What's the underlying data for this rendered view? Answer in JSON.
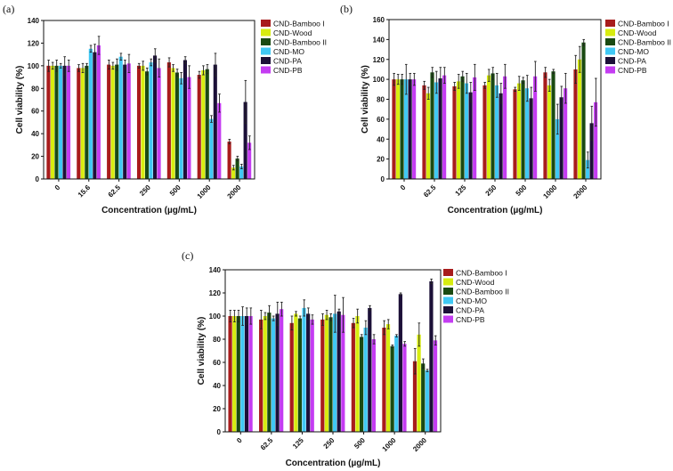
{
  "colors": [
    "#a81c1c",
    "#d8ec10",
    "#1a4a12",
    "#40c8f4",
    "#1c1038",
    "#c43cf2"
  ],
  "chart_data": [
    {
      "panel": "(a)",
      "type": "bar",
      "xlabel": "Concentration (µg/mL)",
      "ylabel": "Cell viability (%)",
      "ylim": [
        0,
        140
      ],
      "yticks": [
        0,
        20,
        40,
        60,
        80,
        100,
        120,
        140
      ],
      "categories": [
        "0",
        "15.6",
        "62.5",
        "250",
        "500",
        "1000",
        "2000"
      ],
      "legend_position": "right",
      "series": [
        {
          "name": "CND-Bamboo I",
          "values": [
            100,
            98,
            101,
            100,
            103,
            92,
            33
          ],
          "errors": [
            5,
            3,
            4,
            2,
            4,
            3,
            2
          ]
        },
        {
          "name": "CND-Wood",
          "values": [
            100,
            98,
            100,
            100,
            98,
            96,
            10
          ],
          "errors": [
            3,
            4,
            3,
            4,
            3,
            4,
            2
          ]
        },
        {
          "name": "CND-Bamboo II",
          "values": [
            100,
            100,
            101,
            95,
            94,
            97,
            18
          ],
          "errors": [
            5,
            2,
            5,
            3,
            3,
            4,
            2
          ]
        },
        {
          "name": "CND-MO",
          "values": [
            100,
            115,
            108,
            103,
            89,
            53,
            11
          ],
          "errors": [
            2,
            3,
            3,
            3,
            5,
            3,
            2
          ]
        },
        {
          "name": "CND-PA",
          "values": [
            100,
            112,
            101,
            109,
            105,
            101,
            68
          ],
          "errors": [
            8,
            7,
            4,
            6,
            3,
            10,
            19
          ]
        },
        {
          "name": "CND-PB",
          "values": [
            100,
            118,
            102,
            98,
            90,
            67,
            32
          ],
          "errors": [
            5,
            8,
            8,
            8,
            10,
            8,
            6
          ]
        }
      ]
    },
    {
      "panel": "(b)",
      "type": "bar",
      "xlabel": "Concentration (µg/mL)",
      "ylabel": "Cell viability (%)",
      "ylim": [
        0,
        160
      ],
      "yticks": [
        0,
        20,
        40,
        60,
        80,
        100,
        120,
        140,
        160
      ],
      "categories": [
        "0",
        "62.5",
        "125",
        "250",
        "500",
        "1000",
        "2000"
      ],
      "legend_position": "right",
      "series": [
        {
          "name": "CND-Bamboo I",
          "values": [
            100,
            94,
            93,
            94,
            90,
            107,
            110
          ],
          "errors": [
            6,
            4,
            4,
            3,
            2,
            5,
            14
          ]
        },
        {
          "name": "CND-Wood",
          "values": [
            100,
            86,
            98,
            104,
            96,
            94,
            120
          ],
          "errors": [
            5,
            6,
            7,
            6,
            7,
            6,
            13
          ]
        },
        {
          "name": "CND-Bamboo II",
          "values": [
            100,
            107,
            103,
            106,
            99,
            108,
            137
          ],
          "errors": [
            5,
            5,
            5,
            6,
            3,
            2,
            3
          ]
        },
        {
          "name": "CND-MO",
          "values": [
            100,
            97,
            96,
            94,
            91,
            60,
            19
          ],
          "errors": [
            15,
            11,
            10,
            12,
            13,
            15,
            8
          ]
        },
        {
          "name": "CND-PA",
          "values": [
            100,
            101,
            87,
            86,
            81,
            82,
            56
          ],
          "errors": [
            6,
            11,
            10,
            10,
            11,
            11,
            17
          ]
        },
        {
          "name": "CND-PB",
          "values": [
            100,
            104,
            102,
            103,
            103,
            91,
            77
          ],
          "errors": [
            6,
            8,
            13,
            12,
            15,
            15,
            24
          ]
        }
      ]
    },
    {
      "panel": "(c)",
      "type": "bar",
      "xlabel": "Concentration (µg/mL)",
      "ylabel": "Cell viability (%)",
      "ylim": [
        0,
        140
      ],
      "yticks": [
        0,
        20,
        40,
        60,
        80,
        100,
        120,
        140
      ],
      "categories": [
        "0",
        "62.5",
        "125",
        "250",
        "500",
        "1000",
        "2000"
      ],
      "legend_position": "right",
      "series": [
        {
          "name": "CND-Bamboo I",
          "values": [
            100,
            97,
            94,
            97,
            94,
            90,
            61
          ],
          "errors": [
            5,
            8,
            6,
            5,
            4,
            6,
            11
          ]
        },
        {
          "name": "CND-Wood",
          "values": [
            100,
            100,
            102,
            101,
            100,
            93,
            84
          ],
          "errors": [
            5,
            3,
            2,
            4,
            6,
            4,
            10
          ]
        },
        {
          "name": "CND-Bamboo II",
          "values": [
            100,
            103,
            98,
            99,
            82,
            74,
            59
          ],
          "errors": [
            5,
            6,
            2,
            3,
            2,
            1,
            4
          ]
        },
        {
          "name": "CND-MO",
          "values": [
            100,
            98,
            107,
            102,
            90,
            83,
            53
          ],
          "errors": [
            8,
            2,
            7,
            16,
            6,
            1,
            1
          ]
        },
        {
          "name": "CND-PA",
          "values": [
            100,
            102,
            102,
            104,
            107,
            119,
            130
          ],
          "errors": [
            7,
            10,
            5,
            2,
            2,
            1,
            2
          ]
        },
        {
          "name": "CND-PB",
          "values": [
            100,
            106,
            97,
            101,
            80,
            76,
            79
          ],
          "errors": [
            7,
            6,
            4,
            15,
            4,
            2,
            4
          ]
        }
      ]
    }
  ]
}
